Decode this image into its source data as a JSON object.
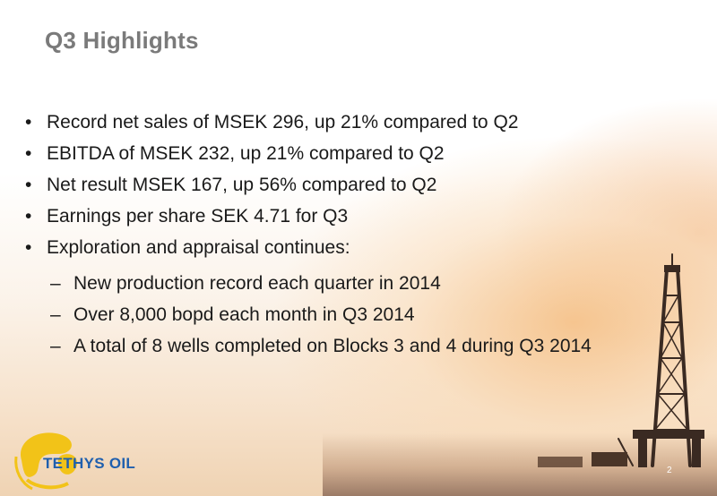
{
  "slide": {
    "title": "Q3 Highlights",
    "bullets": [
      {
        "marker": "•",
        "text": "Record net sales of MSEK 296, up 21% compared to Q2"
      },
      {
        "marker": "•",
        "text": "EBITDA of MSEK 232, up 21% compared to Q2"
      },
      {
        "marker": "•",
        "text": "Net result MSEK 167, up 56% compared to Q2"
      },
      {
        "marker": "•",
        "text": "Earnings per share SEK 4.71 for Q3"
      },
      {
        "marker": "•",
        "text": "Exploration and appraisal continues:"
      }
    ],
    "sub_bullets": [
      {
        "marker": "–",
        "text": "New production record each quarter in 2014"
      },
      {
        "marker": "–",
        "text": "Over 8,000 bopd each month in Q3 2014"
      },
      {
        "marker": "–",
        "text": "A total of 8 wells completed on Blocks 3 and 4 during Q3 2014"
      }
    ],
    "page_number": "2"
  },
  "logo": {
    "text": "TETHYS OIL",
    "icon": "globe-logo-icon",
    "colors": {
      "globe": "#f2c318",
      "text": "#1f5fae"
    }
  },
  "background": {
    "image": "drilling-rig-icon"
  }
}
